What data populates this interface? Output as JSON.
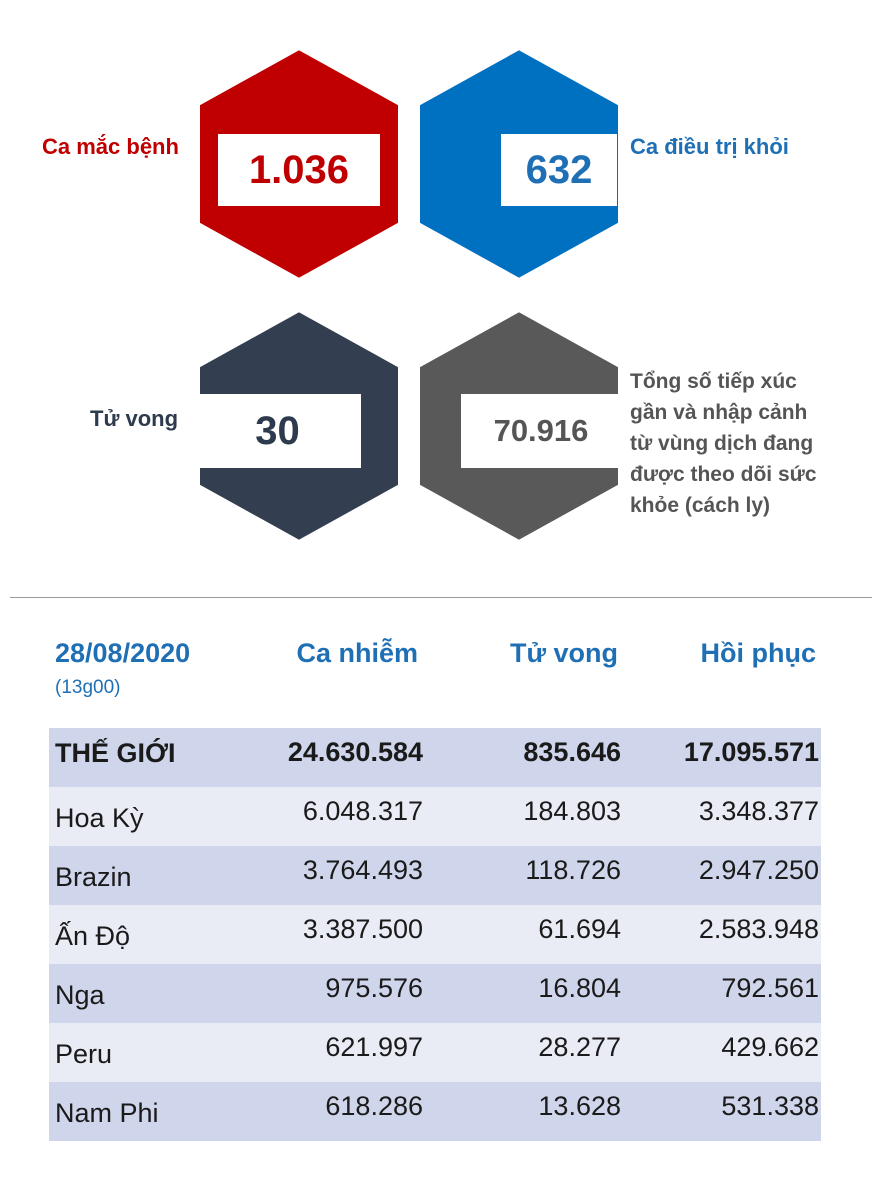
{
  "stats": {
    "cases": {
      "label": "Ca mắc bệnh",
      "value": "1.036",
      "color": "#C00000"
    },
    "recovered": {
      "label": "Ca điều trị khỏi",
      "value": "632",
      "color": "#0070C0"
    },
    "deaths": {
      "label": "Tử vong",
      "value": "30",
      "color": "#333F50"
    },
    "monitored": {
      "label": "Tổng số tiếp xúc gần và nhập cảnh từ vùng dịch đang được theo dõi sức khỏe (cách ly)",
      "value": "70.916",
      "color": "#595959"
    }
  },
  "table": {
    "date": "28/08/2020",
    "time": "(13g00)",
    "headers": {
      "cases": "Ca nhiễm",
      "deaths": "Tử vong",
      "recovered": "Hồi phục"
    },
    "rows": [
      {
        "name": "THẾ GIỚI",
        "cases": "24.630.584",
        "deaths": "835.646",
        "recovered": "17.095.571"
      },
      {
        "name": "Hoa Kỳ",
        "cases": "6.048.317",
        "deaths": "184.803",
        "recovered": "3.348.377"
      },
      {
        "name": "Brazin",
        "cases": "3.764.493",
        "deaths": "118.726",
        "recovered": "2.947.250"
      },
      {
        "name": "Ấn Độ",
        "cases": "3.387.500",
        "deaths": "61.694",
        "recovered": "2.583.948"
      },
      {
        "name": "Nga",
        "cases": "975.576",
        "deaths": "16.804",
        "recovered": "792.561"
      },
      {
        "name": "Peru",
        "cases": "621.997",
        "deaths": "28.277",
        "recovered": "429.662"
      },
      {
        "name": "Nam Phi",
        "cases": "618.286",
        "deaths": "13.628",
        "recovered": "531.338"
      }
    ]
  }
}
